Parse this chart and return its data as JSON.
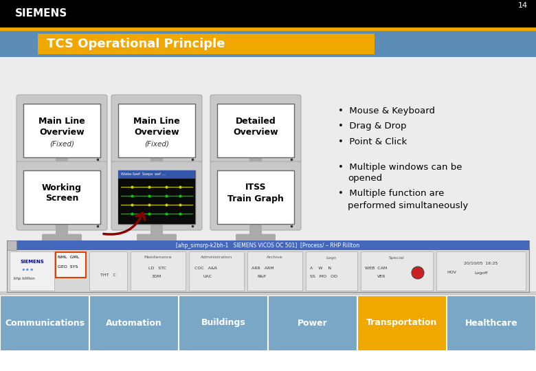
{
  "title": "TCS Operational Principle",
  "slide_number": "14",
  "bg_color": "#e8e8e8",
  "header_bg": "#000000",
  "title_bg": "#f0a800",
  "blue_band_color": "#5b8db8",
  "siemens_text": "SIEMENS",
  "orange_bar_color": "#f0a800",
  "monitors_row1": [
    {
      "lines": [
        "Main Line",
        "Overview"
      ],
      "sub": "(Fixed)"
    },
    {
      "lines": [
        "Main Line",
        "Overview"
      ],
      "sub": "(Fixed)"
    },
    {
      "lines": [
        "Detailed",
        "Overview"
      ],
      "sub": ""
    }
  ],
  "monitors_row2": [
    {
      "lines": [
        "Working",
        "Screen"
      ],
      "sub": "",
      "has_image": false
    },
    {
      "lines": [],
      "sub": "",
      "has_image": true
    },
    {
      "lines": [
        "ITSS",
        "Train Graph"
      ],
      "sub": ""
    }
  ],
  "bullets_top": [
    "Mouse & Keyboard",
    "Drag & Drop",
    "Point & Click"
  ],
  "bullets_bottom": [
    [
      "Multiple windows can be",
      "opened"
    ],
    [
      "Multiple function are",
      "performed simultaneously"
    ]
  ],
  "footer_tabs": [
    "Communications",
    "Automation",
    "Buildings",
    "Power",
    "Transportation",
    "Healthcare"
  ],
  "footer_active": "Transportation",
  "footer_bg": "#7ba7c7",
  "footer_active_color": "#f0a800"
}
